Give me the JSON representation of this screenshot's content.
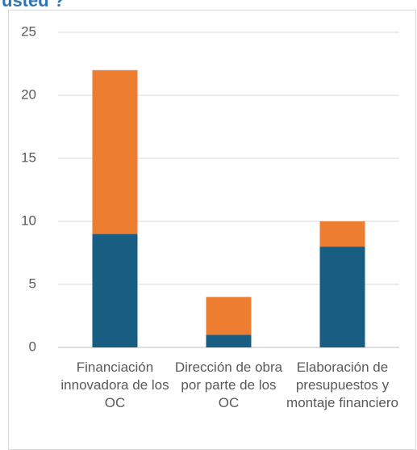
{
  "chart_data": {
    "type": "stacked_bar",
    "title": "usted ?",
    "categories": [
      "Financiación innovadora de los OC",
      "Dirección de obra por parte de los OC",
      "Elaboración de presupuestos y montaje financiero"
    ],
    "series": [
      {
        "color": "#175e82",
        "values": [
          9,
          1,
          8
        ]
      },
      {
        "color": "#ed7d31",
        "values": [
          13,
          3,
          2
        ]
      }
    ],
    "ylim": [
      0,
      25
    ],
    "yticks": [
      0,
      5,
      10,
      15,
      20,
      25
    ],
    "grid": true
  }
}
